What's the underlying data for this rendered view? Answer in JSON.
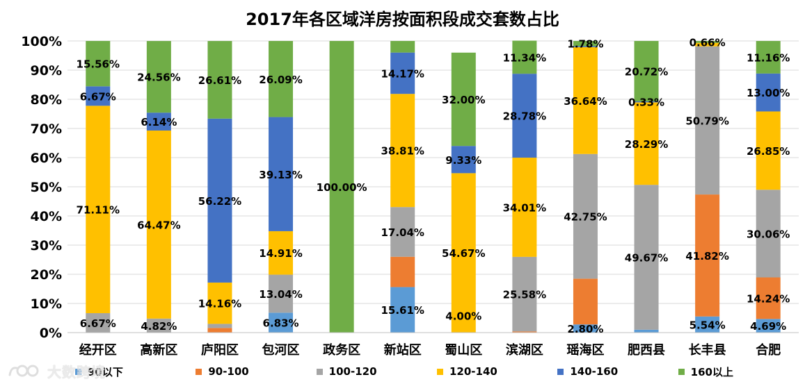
{
  "chart_data": {
    "type": "bar",
    "stacked": true,
    "title": "2017年各区域洋房按面积段成交套数占比",
    "xlabel": "",
    "ylabel": "",
    "ylim": [
      0,
      100
    ],
    "yticks": [
      "0%",
      "10%",
      "20%",
      "30%",
      "40%",
      "50%",
      "60%",
      "70%",
      "80%",
      "90%",
      "100%"
    ],
    "grid": true,
    "legend_position": "bottom",
    "categories": [
      "经开区",
      "高新区",
      "庐阳区",
      "包河区",
      "政务区",
      "新站区",
      "蜀山区",
      "滨湖区",
      "瑶海区",
      "肥西县",
      "长丰县",
      "合肥"
    ],
    "series": [
      {
        "name": "90以下",
        "color": "#5b9bd5",
        "values": [
          0,
          0,
          0,
          6.83,
          0,
          15.61,
          0,
          0,
          2.8,
          1.0,
          5.54,
          4.69
        ],
        "labels": [
          "",
          "",
          "",
          "6.83%",
          "",
          "15.61%",
          "",
          "",
          "2.80%",
          "",
          "5.54%",
          "4.69%"
        ]
      },
      {
        "name": "90-100",
        "color": "#ed7d31",
        "values": [
          0,
          0,
          1.6,
          0,
          0,
          10.4,
          0,
          0.4,
          15.7,
          0,
          41.82,
          14.24
        ],
        "labels": [
          "",
          "",
          "",
          "",
          "",
          "",
          "",
          "",
          "",
          "",
          "41.82%",
          "14.24%"
        ]
      },
      {
        "name": "100-120",
        "color": "#a5a5a5",
        "values": [
          6.67,
          4.82,
          1.4,
          13.04,
          0,
          17.04,
          0,
          25.58,
          42.75,
          49.67,
          50.79,
          30.06
        ],
        "labels": [
          "6.67%",
          "4.82%",
          "",
          "13.04%",
          "",
          "17.04%",
          "",
          "25.58%",
          "42.75%",
          "49.67%",
          "50.79%",
          "30.06%"
        ]
      },
      {
        "name": "120-140",
        "color": "#ffc000",
        "values": [
          71.11,
          64.47,
          14.16,
          14.91,
          0,
          38.81,
          54.67,
          34.01,
          36.64,
          28.29,
          1.19,
          26.85
        ],
        "labels": [
          "71.11%",
          "64.47%",
          "14.16%",
          "14.91%",
          "",
          "38.81%",
          "54.67%",
          "34.01%",
          "36.64%",
          "28.29%",
          "",
          "26.85%"
        ]
      },
      {
        "name": "140-160",
        "color": "#4472c4",
        "values": [
          6.67,
          6.14,
          56.22,
          39.13,
          0,
          14.17,
          9.33,
          28.78,
          0.33,
          0.33,
          0,
          13.0
        ],
        "labels": [
          "6.67%",
          "6.14%",
          "56.22%",
          "39.13%",
          "",
          "14.17%",
          "9.33%",
          "28.78%",
          "",
          "0.33%",
          "",
          "13.00%"
        ]
      },
      {
        "name": "160以上",
        "color": "#70ad47",
        "values": [
          15.56,
          24.56,
          26.61,
          26.09,
          100,
          3.97,
          32.0,
          11.34,
          1.78,
          20.72,
          0.66,
          11.16
        ],
        "labels": [
          "15.56%",
          "24.56%",
          "26.61%",
          "26.09%",
          "100.00%",
          "",
          "32.00%",
          "11.34%",
          "1.78%",
          "20.72%",
          "0.66%",
          "11.16%"
        ]
      }
    ],
    "extra_labels": [
      {
        "category": "蜀山区",
        "text": "4.00%",
        "anchor": 2.0
      }
    ]
  },
  "watermark": {
    "text": "大数跨境",
    "icon": "watermark-logo-icon"
  }
}
